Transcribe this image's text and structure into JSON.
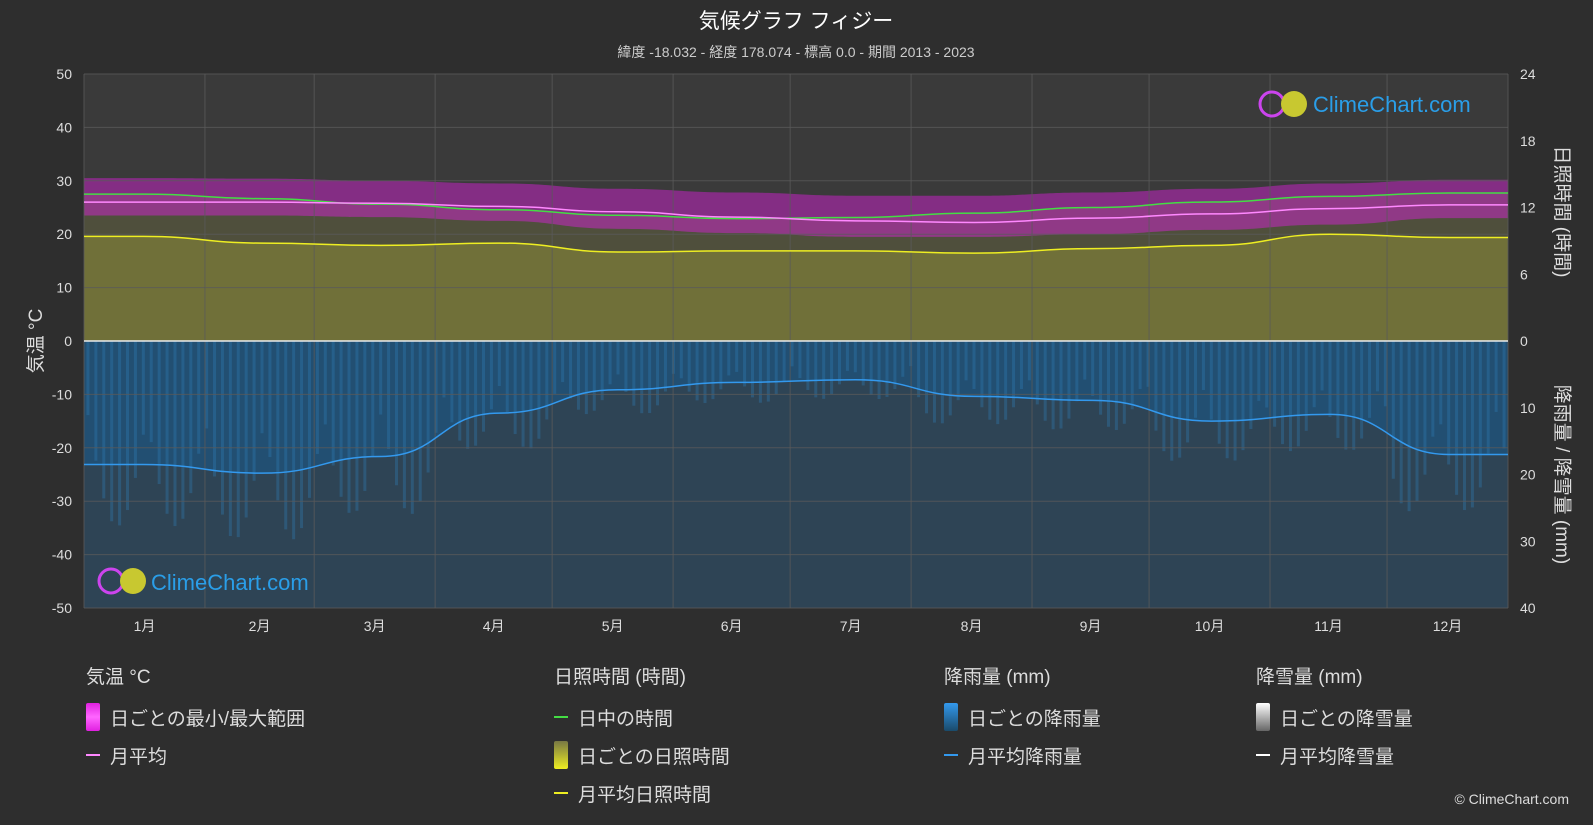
{
  "title": "気候グラフ フィジー",
  "subtitle": "緯度 -18.032 - 経度 178.074 - 標高 0.0 - 期間 2013 - 2023",
  "watermark": "ClimeChart.com",
  "copyright": "© ClimeChart.com",
  "colors": {
    "background": "#2e2e2e",
    "plot_bg": "#3a3a3a",
    "grid": "#5a5a5a",
    "temp_range": "#e020e0",
    "temp_avg": "#ff88ff",
    "daylight": "#44dd44",
    "sunshine_fill": "#a8a830",
    "sunshine_avg": "#eeee22",
    "rain_fill": "#1a5a8a",
    "rain_avg": "#3399ee",
    "snow_avg": "#ffffff",
    "watermark": "#2a9ee8"
  },
  "chart_data": {
    "type": "line",
    "months": [
      "1月",
      "2月",
      "3月",
      "4月",
      "5月",
      "6月",
      "7月",
      "8月",
      "9月",
      "10月",
      "11月",
      "12月"
    ],
    "left_axis": {
      "label": "気温 °C",
      "min": -50,
      "max": 50,
      "ticks": [
        50,
        40,
        30,
        20,
        10,
        0,
        -10,
        -20,
        -30,
        -40,
        -50
      ]
    },
    "right_axis_top": {
      "label": "日照時間 (時間)",
      "min": 0,
      "max": 24,
      "ticks": [
        24,
        18,
        12,
        6,
        0
      ]
    },
    "right_axis_bottom": {
      "label": "降雨量 / 降雪量 (mm)",
      "min": 0,
      "max": 40,
      "ticks": [
        10,
        20,
        30,
        40
      ]
    },
    "series": [
      {
        "name": "日ごとの最小/最大範囲 (最大)",
        "unit": "°C",
        "values": [
          30.5,
          30.4,
          30.0,
          29.5,
          28.5,
          27.8,
          27.2,
          27.2,
          27.8,
          28.5,
          29.5,
          30.2
        ]
      },
      {
        "name": "日ごとの最小/最大範囲 (最小)",
        "unit": "°C",
        "values": [
          23.5,
          23.5,
          23.2,
          22.5,
          21.0,
          20.2,
          19.5,
          19.5,
          20.0,
          20.8,
          21.8,
          23.0
        ]
      },
      {
        "name": "月平均",
        "unit": "°C",
        "values": [
          26.0,
          26.0,
          25.8,
          25.2,
          24.2,
          23.2,
          22.5,
          22.2,
          23.0,
          23.8,
          24.8,
          25.5
        ]
      },
      {
        "name": "日中の時間",
        "unit": "時間",
        "values": [
          13.2,
          12.8,
          12.3,
          11.8,
          11.3,
          11.0,
          11.1,
          11.5,
          12.0,
          12.5,
          13.0,
          13.3
        ]
      },
      {
        "name": "月平均日照時間",
        "unit": "時間",
        "values": [
          9.4,
          8.8,
          8.6,
          8.8,
          8.0,
          8.1,
          8.1,
          7.9,
          8.3,
          8.6,
          9.6,
          9.3
        ]
      },
      {
        "name": "月平均降雨量",
        "unit": "mm",
        "values": [
          18.5,
          19.8,
          17.3,
          10.8,
          7.3,
          6.2,
          5.8,
          8.3,
          8.9,
          12.0,
          11.0,
          17.0
        ]
      },
      {
        "name": "月平均降雪量",
        "unit": "mm",
        "values": [
          0,
          0,
          0,
          0,
          0,
          0,
          0,
          0,
          0,
          0,
          0,
          0
        ]
      }
    ]
  },
  "legend": {
    "groups": [
      {
        "title": "気温 °C",
        "items": [
          {
            "label": "日ごとの最小/最大範囲"
          },
          {
            "label": "月平均"
          }
        ]
      },
      {
        "title": "日照時間 (時間)",
        "items": [
          {
            "label": "日中の時間"
          },
          {
            "label": "日ごとの日照時間"
          },
          {
            "label": "月平均日照時間"
          }
        ]
      },
      {
        "title": "降雨量 (mm)",
        "items": [
          {
            "label": "日ごとの降雨量"
          },
          {
            "label": "月平均降雨量"
          }
        ]
      },
      {
        "title": "降雪量 (mm)",
        "items": [
          {
            "label": "日ごとの降雪量"
          },
          {
            "label": "月平均降雪量"
          }
        ]
      }
    ]
  }
}
